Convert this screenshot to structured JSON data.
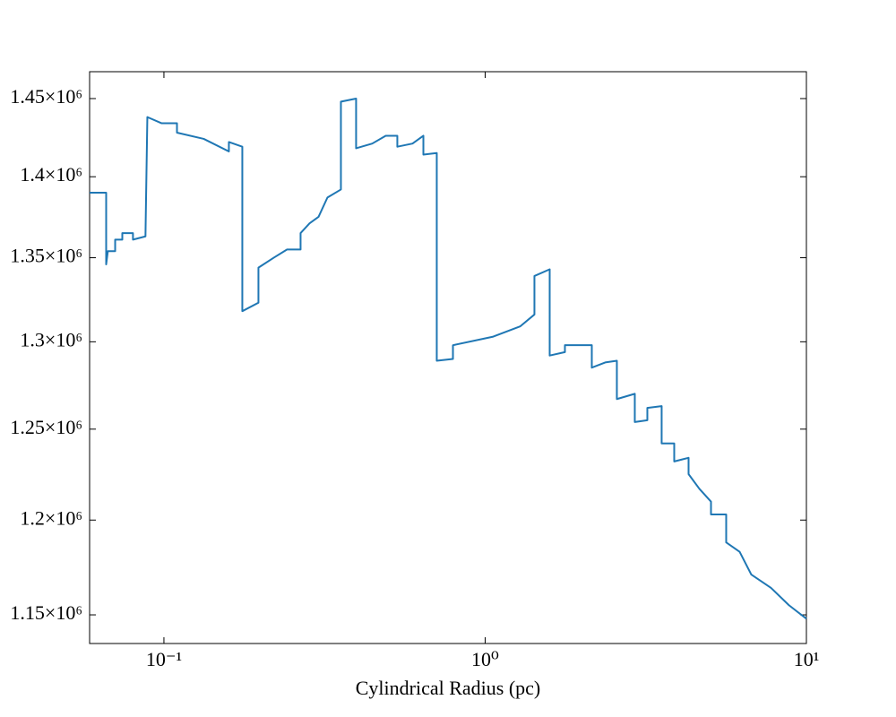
{
  "chart_data": {
    "type": "line",
    "xlabel": "Cylindrical Radius  (pc)",
    "xscale": "log",
    "yscale": "log",
    "xlim": [
      0.0587,
      10
    ],
    "ylim": [
      1135300,
      1467600
    ],
    "xticks": [
      {
        "value": 0.1,
        "label": "10⁻¹"
      },
      {
        "value": 1,
        "label": "10⁰"
      },
      {
        "value": 10,
        "label": "10¹"
      }
    ],
    "yticks": [
      {
        "value": 1150000,
        "label": "1.15×10⁶"
      },
      {
        "value": 1200000,
        "label": "1.2×10⁶"
      },
      {
        "value": 1250000,
        "label": "1.25×10⁶"
      },
      {
        "value": 1300000,
        "label": "1.3×10⁶"
      },
      {
        "value": 1350000,
        "label": "1.35×10⁶"
      },
      {
        "value": 1400000,
        "label": "1.4×10⁶"
      },
      {
        "value": 1450000,
        "label": "1.45×10⁶"
      }
    ],
    "x": [
      0.0587,
      0.0661,
      0.0661,
      0.0669,
      0.0705,
      0.0705,
      0.0742,
      0.0742,
      0.0801,
      0.0801,
      0.0876,
      0.0888,
      0.0984,
      0.1098,
      0.1098,
      0.133,
      0.1593,
      0.1593,
      0.1754,
      0.1754,
      0.1969,
      0.1969,
      0.2197,
      0.2417,
      0.2663,
      0.2663,
      0.284,
      0.3029,
      0.3229,
      0.3556,
      0.3556,
      0.3965,
      0.3965,
      0.4452,
      0.4903,
      0.5328,
      0.5328,
      0.5941,
      0.6422,
      0.6422,
      0.7069,
      0.7069,
      0.7938,
      0.7938,
      1.0595,
      1.2846,
      1.4235,
      1.4235,
      1.5881,
      1.5881,
      1.7713,
      1.7713,
      2.1477,
      2.1477,
      2.3647,
      2.5704,
      2.5704,
      2.9228,
      2.9228,
      3.1978,
      3.1978,
      3.5433,
      3.5433,
      3.8774,
      3.8774,
      4.2972,
      4.2972,
      4.6416,
      5.0466,
      5.0466,
      5.6273,
      5.6273,
      6.1968,
      6.7365,
      7.7591,
      8.8231,
      10
    ],
    "series": [
      {
        "color": "#1f77b4",
        "values": [
          1390000,
          1390000,
          1346000,
          1354000,
          1354000,
          1361000,
          1361000,
          1365000,
          1365000,
          1361000,
          1363000,
          1438000,
          1434000,
          1434000,
          1428000,
          1424000,
          1416000,
          1422000,
          1419000,
          1318000,
          1323000,
          1344000,
          1350000,
          1355000,
          1355000,
          1365000,
          1371000,
          1375000,
          1387000,
          1392000,
          1448000,
          1450000,
          1418000,
          1421000,
          1426000,
          1426000,
          1419000,
          1421000,
          1426000,
          1414000,
          1415000,
          1289000,
          1290000,
          1298000,
          1303000,
          1309000,
          1316000,
          1339000,
          1343000,
          1292000,
          1294000,
          1298000,
          1298000,
          1285000,
          1288000,
          1289000,
          1267000,
          1270000,
          1254000,
          1255000,
          1262000,
          1263000,
          1242000,
          1242000,
          1232000,
          1234000,
          1225000,
          1217000,
          1210000,
          1203000,
          1203000,
          1188000,
          1183000,
          1171000,
          1164000,
          1155000,
          1148000
        ]
      }
    ]
  }
}
